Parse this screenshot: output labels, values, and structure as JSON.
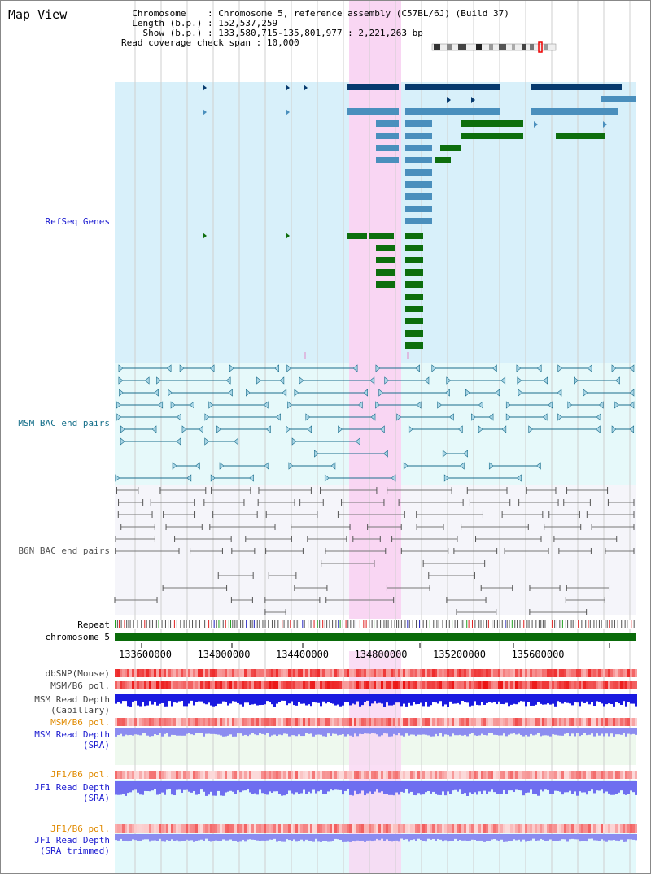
{
  "title": "Map View",
  "info": {
    "chromosome_key": "Chromosome",
    "chromosome_val": "Chromosome 5, reference assembly (C57BL/6J) (Build 37)",
    "length_key": "Length (b.p.)",
    "length_val": "152,537,259",
    "show_key": "Show (b.p.)",
    "show_val": "133,580,715-135,801,977 : 2,221,263 bp",
    "span_key": "Read coverage check span",
    "span_val": "10,000"
  },
  "tracks": {
    "refseq": "RefSeq Genes",
    "msm_bac": "MSM BAC end pairs",
    "b6n_bac": "B6N BAC end pairs",
    "repeat": "Repeat",
    "chrom": "chromosome 5",
    "dbsnp": "dbSNP(Mouse)",
    "msm_b6_pol": "MSM/B6 pol.",
    "msm_depth_cap_1": "MSM Read Depth",
    "msm_depth_cap_2": "(Capillary)",
    "msm_b6_pol2": "MSM/B6 pol.",
    "msm_depth_sra_1": "MSM Read Depth",
    "msm_depth_sra_2": "(SRA)",
    "jf1_b6_pol": "JF1/B6 pol.",
    "jf1_depth_sra_1": "JF1 Read Depth",
    "jf1_depth_sra_2": "(SRA)",
    "jf1_b6_pol2": "JF1/B6 pol.",
    "jf1_depth_trim_1": "JF1 Read Depth",
    "jf1_depth_trim_2": "(SRA trimmed)"
  },
  "axis_ticks": [
    "133600000",
    "134000000",
    "134400000",
    "134800000",
    "135200000",
    "135600000"
  ],
  "colors": {
    "refseq_bg": "#d8f0fa",
    "msm_bg": "#e6f9fa",
    "b6n_bg": "#f5f5fa",
    "highlight": "#f9d6f3",
    "gene_dark": "#073a6e",
    "gene_mid": "#4a8fbd",
    "gene_green": "#0d6e0d",
    "msm_line": "#1a6d8c",
    "b6n_line": "#777777",
    "chrom_green": "#0a6b0a",
    "label_blue": "#1a1ad0",
    "label_orange": "#e08a00",
    "label_teal": "#156f8a"
  }
}
